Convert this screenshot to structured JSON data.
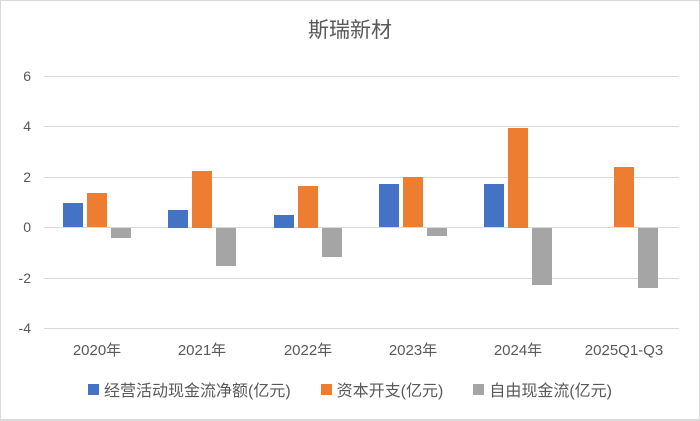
{
  "chart_data": {
    "type": "bar",
    "title": "斯瑞新材",
    "categories": [
      "2020年",
      "2021年",
      "2022年",
      "2023年",
      "2024年",
      "2025Q1-Q3"
    ],
    "series": [
      {
        "name": "经营活动现金流净额(亿元)",
        "color": "#4472C4",
        "values": [
          0.95,
          0.7,
          0.5,
          1.7,
          1.7,
          0
        ]
      },
      {
        "name": "资本开支(亿元)",
        "color": "#ED7D31",
        "values": [
          1.35,
          2.25,
          1.65,
          2.0,
          3.95,
          2.4
        ]
      },
      {
        "name": "自由现金流(亿元)",
        "color": "#A5A5A5",
        "values": [
          -0.4,
          -1.5,
          -1.15,
          -0.3,
          -2.25,
          -2.4
        ]
      }
    ],
    "ylim": [
      -4,
      6
    ],
    "y_ticks": [
      6,
      4,
      2,
      0,
      -2,
      -4
    ],
    "grid": true,
    "legend_position": "bottom",
    "xlabel": "",
    "ylabel": "",
    "text_color": "#595959",
    "gridline_color": "#d9d9d9"
  }
}
